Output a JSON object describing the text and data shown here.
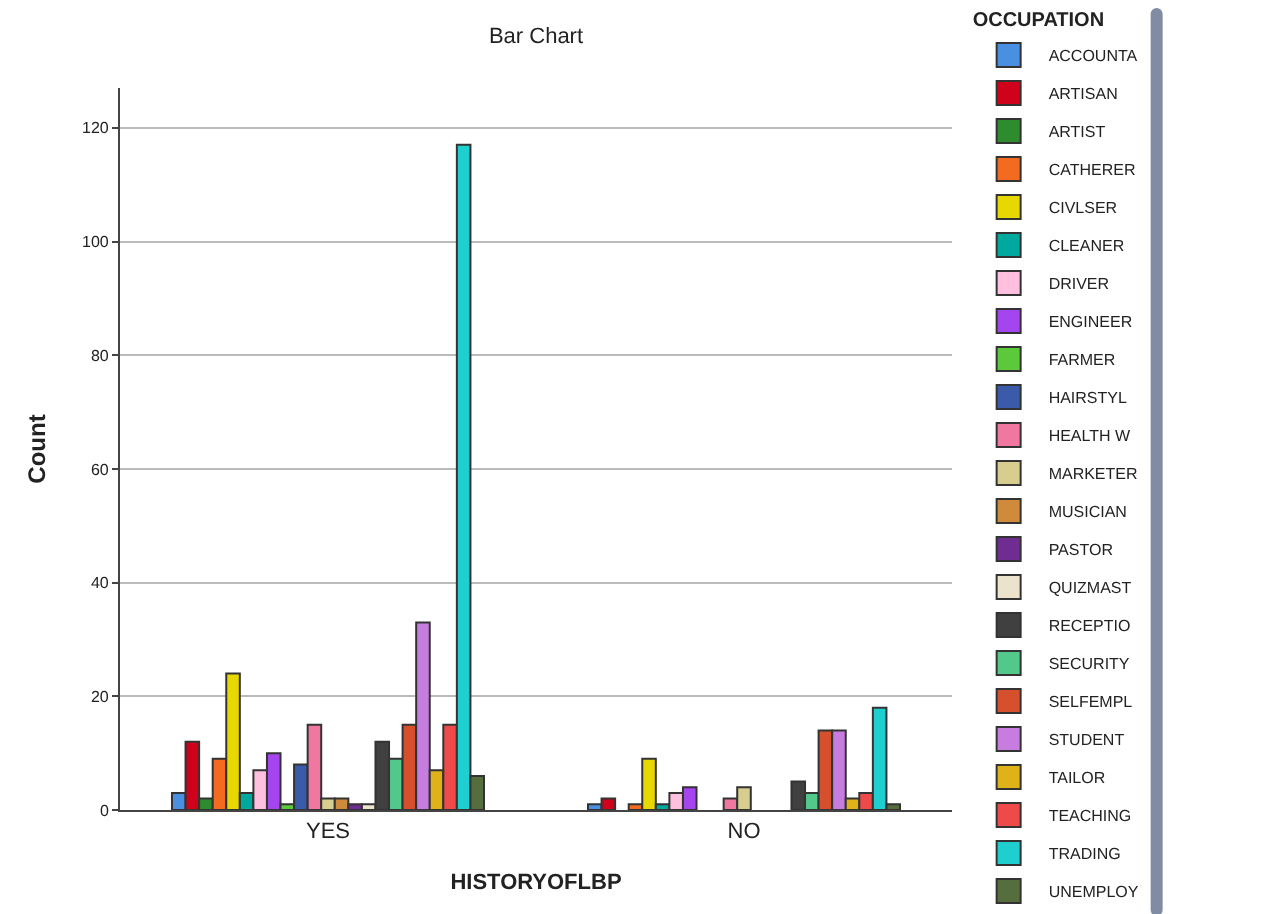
{
  "chart_data": {
    "type": "bar",
    "title": "Bar Chart",
    "xlabel": "HISTORYOFLBP",
    "ylabel": "Count",
    "legend_title": "OCCUPATION",
    "categories": [
      "YES",
      "NO"
    ],
    "ylim": [
      0,
      127
    ],
    "yticks": [
      0,
      20,
      40,
      60,
      80,
      100,
      120
    ],
    "grid": "y",
    "legend": "right",
    "series": [
      {
        "name": "ACCOUNTA",
        "color": "#4a90e2",
        "values": [
          3,
          1
        ]
      },
      {
        "name": "ARTISAN",
        "color": "#d0021b",
        "values": [
          12,
          2
        ]
      },
      {
        "name": "ARTIST",
        "color": "#2e8b2e",
        "values": [
          2,
          null
        ]
      },
      {
        "name": "CATHERER",
        "color": "#f26b21",
        "values": [
          9,
          1
        ]
      },
      {
        "name": "CIVLSER",
        "color": "#e6d800",
        "values": [
          24,
          9
        ]
      },
      {
        "name": "CLEANER",
        "color": "#00a99d",
        "values": [
          3,
          1
        ]
      },
      {
        "name": "DRIVER",
        "color": "#ffc0e0",
        "values": [
          7,
          3
        ]
      },
      {
        "name": "ENGINEER",
        "color": "#a545f0",
        "values": [
          10,
          4
        ]
      },
      {
        "name": "FARMER",
        "color": "#5cc93a",
        "values": [
          1,
          null
        ]
      },
      {
        "name": "HAIRSTYL",
        "color": "#3a5ba9",
        "values": [
          8,
          null
        ]
      },
      {
        "name": "HEALTH W",
        "color": "#f078a0",
        "values": [
          15,
          2
        ]
      },
      {
        "name": "MARKETER",
        "color": "#d6cd8e",
        "values": [
          2,
          4
        ]
      },
      {
        "name": "MUSICIAN",
        "color": "#d08a3c",
        "values": [
          2,
          null
        ]
      },
      {
        "name": "PASTOR",
        "color": "#6f2c91",
        "values": [
          1,
          null
        ]
      },
      {
        "name": "QUIZMAST",
        "color": "#ece3cc",
        "values": [
          1,
          null
        ]
      },
      {
        "name": "RECEPTIO",
        "color": "#404040",
        "values": [
          12,
          5
        ]
      },
      {
        "name": "SECURITY",
        "color": "#52c98a",
        "values": [
          9,
          3
        ]
      },
      {
        "name": "SELFEMPL",
        "color": "#d6502e",
        "values": [
          15,
          14
        ]
      },
      {
        "name": "STUDENT",
        "color": "#c77de0",
        "values": [
          33,
          14
        ]
      },
      {
        "name": "TAILOR",
        "color": "#e0b21a",
        "values": [
          7,
          2
        ]
      },
      {
        "name": "TEACHING",
        "color": "#ef4a4a",
        "values": [
          15,
          3
        ]
      },
      {
        "name": "TRADING",
        "color": "#1fcfcf",
        "values": [
          117,
          18
        ]
      },
      {
        "name": "UNEMPLOY",
        "color": "#566e3d",
        "values": [
          6,
          1
        ]
      }
    ]
  }
}
